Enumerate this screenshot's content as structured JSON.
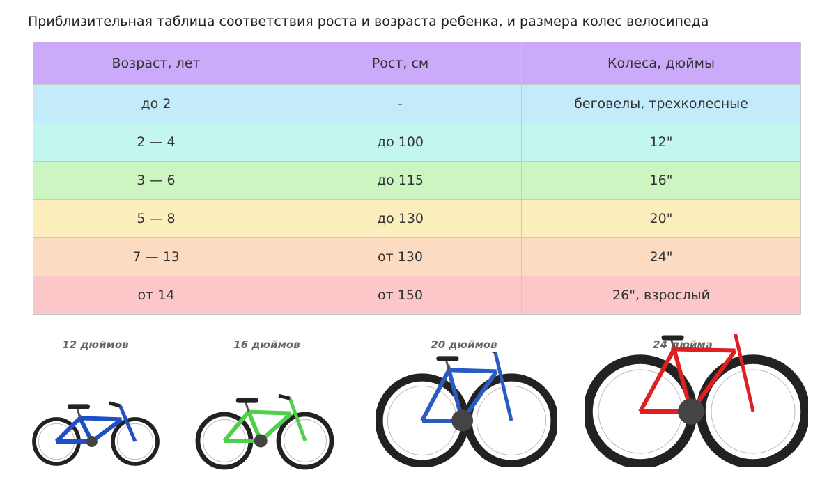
{
  "title": "Приблизительная таблица соответствия роста и возраста ребенка, и размера колес велосипеда",
  "table": {
    "headers": [
      "Возраст, лет",
      "Рост, см",
      "Колеса, дюймы"
    ],
    "header_color": "#cbabf9",
    "rows": [
      {
        "cells": [
          "до 2",
          "-",
          "беговелы, трехколесные"
        ],
        "color": "#c4ebfa"
      },
      {
        "cells": [
          "2 — 4",
          "до 100",
          "12\""
        ],
        "color": "#c3f6ee"
      },
      {
        "cells": [
          "3 — 6",
          "до 115",
          "16\""
        ],
        "color": "#cdf5c1"
      },
      {
        "cells": [
          "5 — 8",
          "до 130",
          "20\""
        ],
        "color": "#fdeebd"
      },
      {
        "cells": [
          "7 — 13",
          "от 130",
          "24\""
        ],
        "color": "#fbdcc2"
      },
      {
        "cells": [
          "от 14",
          "от 150",
          "26\", взрослый"
        ],
        "color": "#fbc7c8"
      }
    ]
  },
  "bikes": [
    {
      "label": "12 дюймов",
      "frame_color": "#1f4fc8"
    },
    {
      "label": "16 дюймов",
      "frame_color": "#4fcf4a"
    },
    {
      "label": "20 дюймов",
      "frame_color": "#2a5cc0"
    },
    {
      "label": "24 дюйма",
      "frame_color": "#e02020"
    }
  ]
}
